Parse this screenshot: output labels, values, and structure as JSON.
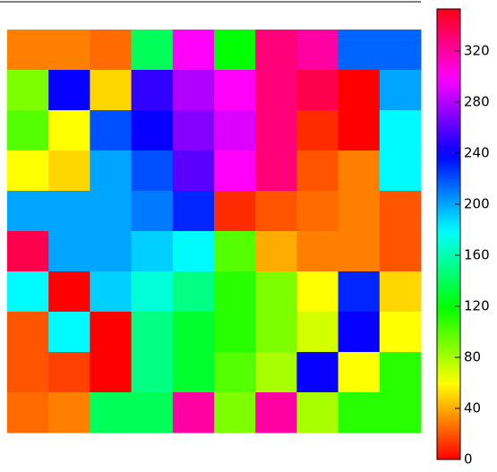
{
  "chart_data": {
    "type": "heatmap",
    "colormap": "hsv",
    "values": [
      [
        30,
        30,
        25,
        140,
        300,
        120,
        330,
        320,
        215,
        215
      ],
      [
        90,
        240,
        50,
        250,
        280,
        300,
        330,
        340,
        0,
        200
      ],
      [
        100,
        60,
        220,
        240,
        270,
        290,
        330,
        10,
        0,
        180
      ],
      [
        60,
        50,
        200,
        220,
        260,
        300,
        330,
        20,
        30,
        180
      ],
      [
        200,
        200,
        200,
        210,
        230,
        10,
        20,
        25,
        30,
        20
      ],
      [
        340,
        200,
        200,
        190,
        180,
        100,
        40,
        30,
        30,
        20
      ],
      [
        180,
        0,
        190,
        170,
        150,
        110,
        90,
        60,
        230,
        50
      ],
      [
        20,
        180,
        0,
        150,
        130,
        110,
        90,
        70,
        240,
        60
      ],
      [
        20,
        15,
        0,
        150,
        130,
        100,
        80,
        240,
        60,
        110
      ],
      [
        25,
        30,
        140,
        140,
        320,
        90,
        320,
        80,
        110,
        110
      ]
    ],
    "zlim": [
      0,
      353
    ],
    "zticks": [
      0,
      40,
      80,
      120,
      160,
      200,
      240,
      280,
      320
    ]
  }
}
